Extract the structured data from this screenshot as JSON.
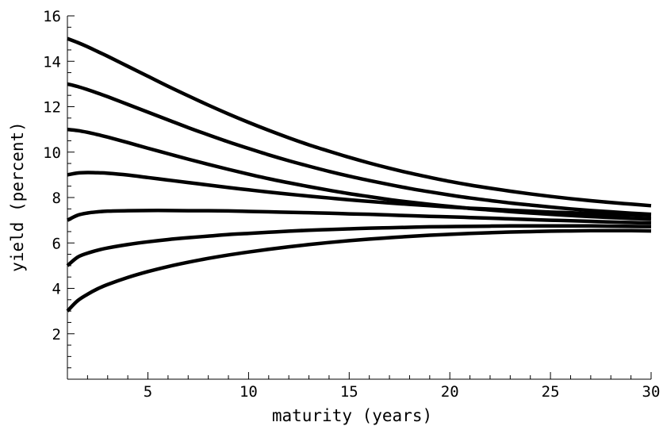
{
  "chart_data": {
    "type": "line",
    "title": "",
    "xlabel": "maturity (years)",
    "ylabel": "yield (percent)",
    "xlim": [
      1,
      30
    ],
    "ylim": [
      0,
      16
    ],
    "xticks": [
      5,
      10,
      15,
      20,
      25,
      30
    ],
    "xtick_labels": [
      "5",
      "10",
      "15",
      "20",
      "25",
      "30"
    ],
    "yticks": [
      2,
      4,
      6,
      8,
      10,
      12,
      14,
      16
    ],
    "ytick_labels": [
      "2",
      "4",
      "6",
      "8",
      "10",
      "12",
      "14",
      "16"
    ],
    "x_minor_step": 1,
    "y_minor_step": 0.5,
    "grid": false,
    "legend": "none",
    "line_color": "#000000",
    "x": [
      1,
      1.5,
      2,
      2.5,
      3,
      4,
      5,
      6,
      7,
      8,
      9,
      10,
      11,
      12,
      13,
      14,
      15,
      16,
      17,
      18,
      19,
      20,
      21,
      22,
      23,
      24,
      25,
      26,
      27,
      28,
      29,
      30
    ],
    "series": [
      {
        "values": [
          15.0,
          14.83,
          14.64,
          14.43,
          14.22,
          13.78,
          13.34,
          12.9,
          12.48,
          12.07,
          11.68,
          11.31,
          10.96,
          10.63,
          10.32,
          10.04,
          9.77,
          9.52,
          9.29,
          9.08,
          8.89,
          8.71,
          8.55,
          8.41,
          8.28,
          8.16,
          8.05,
          7.95,
          7.86,
          7.78,
          7.71,
          7.64
        ]
      },
      {
        "values": [
          13.0,
          12.89,
          12.75,
          12.6,
          12.44,
          12.1,
          11.76,
          11.42,
          11.08,
          10.76,
          10.45,
          10.16,
          9.88,
          9.62,
          9.38,
          9.15,
          8.94,
          8.75,
          8.57,
          8.4,
          8.25,
          8.11,
          7.98,
          7.87,
          7.76,
          7.67,
          7.58,
          7.5,
          7.43,
          7.37,
          7.31,
          7.26
        ]
      },
      {
        "values": [
          11.0,
          10.95,
          10.87,
          10.77,
          10.66,
          10.42,
          10.17,
          9.93,
          9.69,
          9.46,
          9.24,
          9.03,
          8.83,
          8.65,
          8.48,
          8.32,
          8.17,
          8.04,
          7.91,
          7.8,
          7.7,
          7.61,
          7.52,
          7.45,
          7.38,
          7.32,
          7.26,
          7.21,
          7.16,
          7.12,
          7.08,
          7.05
        ]
      },
      {
        "values": [
          9.0,
          9.08,
          9.1,
          9.09,
          9.07,
          8.99,
          8.88,
          8.77,
          8.66,
          8.55,
          8.44,
          8.34,
          8.24,
          8.15,
          8.06,
          7.98,
          7.9,
          7.83,
          7.76,
          7.7,
          7.64,
          7.58,
          7.53,
          7.49,
          7.44,
          7.4,
          7.36,
          7.33,
          7.29,
          7.26,
          7.23,
          7.2
        ]
      },
      {
        "values": [
          7.0,
          7.22,
          7.32,
          7.37,
          7.4,
          7.42,
          7.43,
          7.43,
          7.42,
          7.42,
          7.41,
          7.39,
          7.37,
          7.35,
          7.33,
          7.31,
          7.28,
          7.26,
          7.23,
          7.2,
          7.17,
          7.15,
          7.12,
          7.09,
          7.06,
          7.03,
          7.0,
          6.98,
          6.95,
          6.92,
          6.9,
          6.88
        ]
      },
      {
        "values": [
          5.0,
          5.37,
          5.55,
          5.68,
          5.78,
          5.93,
          6.05,
          6.15,
          6.23,
          6.3,
          6.37,
          6.42,
          6.47,
          6.52,
          6.56,
          6.59,
          6.62,
          6.65,
          6.67,
          6.69,
          6.71,
          6.72,
          6.73,
          6.74,
          6.75,
          6.75,
          6.75,
          6.75,
          6.75,
          6.74,
          6.73,
          6.72
        ]
      },
      {
        "values": [
          3.0,
          3.45,
          3.74,
          3.98,
          4.17,
          4.48,
          4.74,
          4.96,
          5.15,
          5.32,
          5.47,
          5.6,
          5.72,
          5.83,
          5.93,
          6.02,
          6.1,
          6.17,
          6.23,
          6.29,
          6.34,
          6.38,
          6.42,
          6.45,
          6.48,
          6.5,
          6.52,
          6.53,
          6.54,
          6.54,
          6.54,
          6.53
        ]
      }
    ]
  }
}
